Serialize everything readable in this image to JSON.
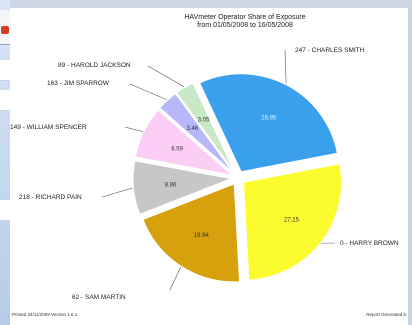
{
  "chart_data": {
    "type": "pie",
    "title": "HAVmeter Operator Share of Exposure",
    "subtitle": "from 01/05/2008 to 16/05/2008",
    "slices": [
      {
        "label": "247 - CHARLES SMITH",
        "value": 28.95,
        "color": "#3aa0ee"
      },
      {
        "label": "0 - HARRY BROWN",
        "value": 27.15,
        "color": "#fbfb2e"
      },
      {
        "label": "62 - SAM MARTIN",
        "value": 19.94,
        "color": "#d6a10c"
      },
      {
        "label": "218 - RICHARD PAIN",
        "value": 8.86,
        "color": "#c7c7c7"
      },
      {
        "label": "149 - WILLIAM SPENCER",
        "value": 8.59,
        "color": "#fccef6"
      },
      {
        "label": "163 - JIM SPARROW",
        "value": 3.46,
        "color": "#b7b7fa"
      },
      {
        "label": "89 - HAROLD JACKSON",
        "value": 3.05,
        "color": "#c9e8c6"
      }
    ]
  },
  "footer": {
    "printed": "Printed 24/11/2009 Version 1.6.1",
    "generated": "Report Generated b"
  }
}
